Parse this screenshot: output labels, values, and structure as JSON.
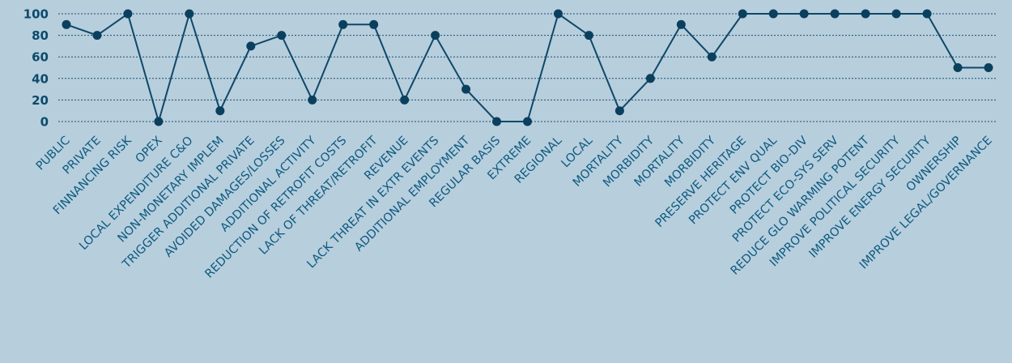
{
  "chart_data": {
    "type": "line",
    "title": "",
    "xlabel": "",
    "ylabel": "",
    "ylim": [
      0,
      100
    ],
    "yticks": [
      0,
      20,
      40,
      60,
      80,
      100
    ],
    "grid": true,
    "categories": [
      "PUBLIC",
      "PRIVATE",
      "FINNANCING RISK",
      "OPEX",
      "LOCAL EXPENDITURE C&O",
      "NON-MONETARY IMPLEM",
      "TRIGGER ADDITIONAL PRIVATE",
      "AVOIDED DAMAGES/LOSSES",
      "ADDITIONAL ACTIVITY",
      "REDUCTION OF RETROFIT COSTS",
      "LACK OF THREAT/RETROFIT",
      "REVENUE",
      "LACK THREAT IN EXTR EVENTS",
      "ADDITIONAL EMPLOYMENT",
      "REGULAR BASIS",
      "EXTREME",
      "REGIONAL",
      "LOCAL",
      "MORTALITY",
      "MORBIDITY",
      "MORTALITY",
      "MORBIDITY",
      "PRESERVE HERITAGE",
      "PROTECT ENV QUAL",
      "PROTECT BIO-DIV",
      "PROTECT ECO-SYS SERV",
      "REDUCE GLO WARMING POTENT",
      "IMPROVE POLITICAL SECURITY",
      "IMPROVE ENERGY SECURITY",
      "OWNERSHIP",
      "IMPROVE LEGAL/GOVERNANCE"
    ],
    "series": [
      {
        "values": [
          90,
          80,
          100,
          0,
          100,
          10,
          70,
          80,
          20,
          90,
          90,
          20,
          80,
          30,
          0,
          0,
          100,
          80,
          10,
          40,
          90,
          60,
          100,
          100,
          100,
          100,
          100,
          100,
          100,
          50,
          50
        ]
      }
    ],
    "colors": {
      "background": "#b7cedd",
      "line": "#0e4868",
      "marker": "#0b3f5e",
      "tick_label": "#0d5b80",
      "axis_label": "#0d4a6b"
    }
  }
}
